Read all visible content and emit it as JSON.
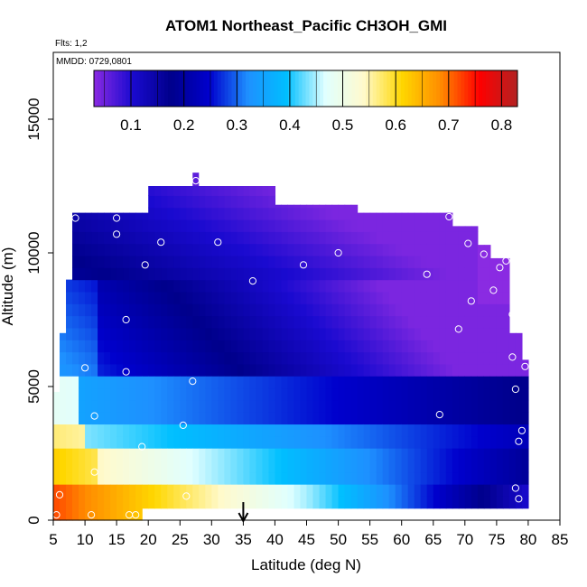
{
  "chart_data": {
    "type": "heatmap",
    "title": "ATOM1 Northeast_Pacific CH3OH_GMI",
    "flights_note": "Flts: 1,2",
    "date_note": "MMDD: 0729,0801",
    "xlabel": "Latitude (deg N)",
    "ylabel": "Altitude (m)",
    "xlim": [
      5,
      85
    ],
    "ylim": [
      0,
      17500
    ],
    "x_ticks": [
      5,
      10,
      15,
      20,
      25,
      30,
      35,
      40,
      45,
      50,
      55,
      60,
      65,
      70,
      75,
      80,
      85
    ],
    "y_ticks": [
      0,
      5000,
      10000,
      15000
    ],
    "colorbar": {
      "range": [
        0.03,
        0.83
      ],
      "ticks": [
        0.1,
        0.2,
        0.3,
        0.4,
        0.5,
        0.6,
        0.7,
        0.8
      ],
      "colors": [
        "#8a2be2",
        "#1a0ad0",
        "#00008b",
        "#0000cd",
        "#1e90ff",
        "#00bfff",
        "#e0ffff",
        "#fffacd",
        "#ffd700",
        "#ff8c00",
        "#ff0000",
        "#b22222"
      ]
    },
    "marker_latitude": 35,
    "grid": false,
    "observations": [
      {
        "lat": 5.5,
        "alt": 200
      },
      {
        "lat": 6,
        "alt": 950
      },
      {
        "lat": 11,
        "alt": 200
      },
      {
        "lat": 17,
        "alt": 200
      },
      {
        "lat": 18,
        "alt": 200
      },
      {
        "lat": 11.5,
        "alt": 1800
      },
      {
        "lat": 26,
        "alt": 900
      },
      {
        "lat": 19,
        "alt": 2750
      },
      {
        "lat": 25.5,
        "alt": 3550
      },
      {
        "lat": 11.5,
        "alt": 3900
      },
      {
        "lat": 10,
        "alt": 5700
      },
      {
        "lat": 16.5,
        "alt": 5550
      },
      {
        "lat": 27,
        "alt": 5200
      },
      {
        "lat": 66,
        "alt": 3950
      },
      {
        "lat": 16.5,
        "alt": 7500
      },
      {
        "lat": 8.5,
        "alt": 11300
      },
      {
        "lat": 15,
        "alt": 11300
      },
      {
        "lat": 15,
        "alt": 10700
      },
      {
        "lat": 22,
        "alt": 10400
      },
      {
        "lat": 31,
        "alt": 10400
      },
      {
        "lat": 19.5,
        "alt": 9550
      },
      {
        "lat": 27.5,
        "alt": 12700
      },
      {
        "lat": 36.5,
        "alt": 8950
      },
      {
        "lat": 44.5,
        "alt": 9550
      },
      {
        "lat": 50,
        "alt": 10000
      },
      {
        "lat": 64,
        "alt": 9200
      },
      {
        "lat": 67.5,
        "alt": 11350
      },
      {
        "lat": 70.5,
        "alt": 10350
      },
      {
        "lat": 73,
        "alt": 9950
      },
      {
        "lat": 75.5,
        "alt": 9450
      },
      {
        "lat": 76.5,
        "alt": 9700
      },
      {
        "lat": 74.5,
        "alt": 8600
      },
      {
        "lat": 71,
        "alt": 8200
      },
      {
        "lat": 69,
        "alt": 7150
      },
      {
        "lat": 77.5,
        "alt": 7700
      },
      {
        "lat": 77.5,
        "alt": 6100
      },
      {
        "lat": 79.5,
        "alt": 5750
      },
      {
        "lat": 78,
        "alt": 4900
      },
      {
        "lat": 79,
        "alt": 3350
      },
      {
        "lat": 78.5,
        "alt": 2950
      },
      {
        "lat": 78,
        "alt": 1200
      },
      {
        "lat": 78.5,
        "alt": 800
      }
    ]
  }
}
